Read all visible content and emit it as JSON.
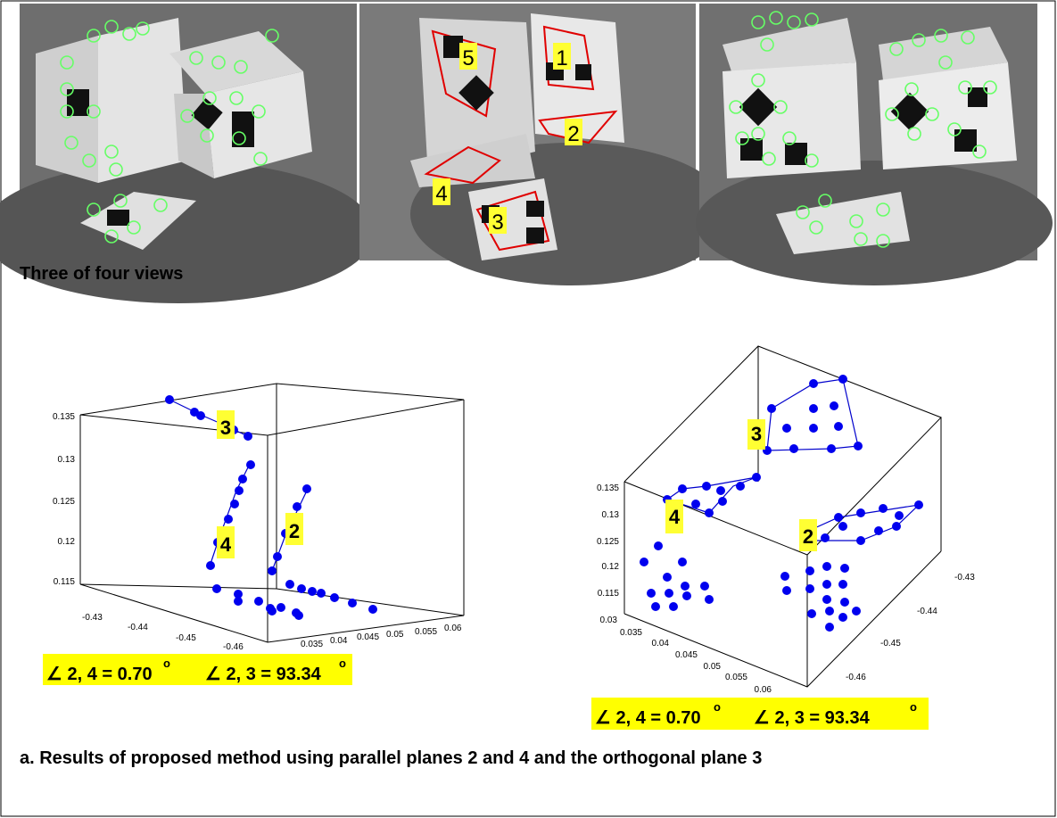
{
  "photos": {
    "labels": [
      "1",
      "2",
      "3",
      "4",
      "5"
    ]
  },
  "caption_top": "Three of four views",
  "plot_left": {
    "z_ticks": [
      "0.135",
      "0.13",
      "0.125",
      "0.12",
      "0.115"
    ],
    "x_ticks": [
      "-0.43",
      "-0.44",
      "-0.45",
      "-0.46"
    ],
    "y_ticks": [
      "0.035",
      "0.04",
      "0.045",
      "0.05",
      "0.055",
      "0.06"
    ],
    "plane_labels": [
      "3",
      "4",
      "2"
    ],
    "annotation": [
      "∠ 2, 4 = 0.70",
      "o",
      "∠ 2, 3 = 93.34",
      "o"
    ]
  },
  "plot_right": {
    "z_ticks": [
      "0.135",
      "0.13",
      "0.125",
      "0.12",
      "0.115"
    ],
    "x_ticks": [
      "0.03",
      "0.035",
      "0.04",
      "0.045",
      "0.05",
      "0.055",
      "0.06"
    ],
    "y_ticks": [
      "-0.43",
      "-0.44",
      "-0.45",
      "-0.46"
    ],
    "plane_labels": [
      "3",
      "4",
      "2"
    ],
    "annotation": [
      "∠ 2, 4 = 0.70",
      "o",
      "∠ 2, 3 = 93.34",
      "o"
    ]
  },
  "caption_bottom": "a. Results of proposed method using parallel planes 2 and 4 and the orthogonal plane 3"
}
